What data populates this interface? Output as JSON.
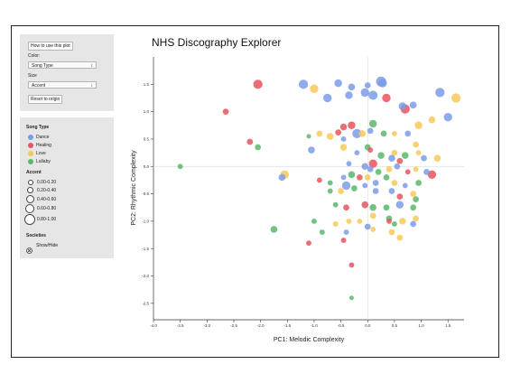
{
  "controls": {
    "help_button": "How to use this plot",
    "color_label": "Color:",
    "color_value": "Song Type",
    "size_label": "Size",
    "size_value": "Accent",
    "reset_button": "Reset to origin"
  },
  "legend": {
    "song_type_title": "Song Type",
    "song_types": [
      {
        "label": "Dance",
        "color": "#7b9ce8"
      },
      {
        "label": "Healing",
        "color": "#e8555e"
      },
      {
        "label": "Love",
        "color": "#f8c95a"
      },
      {
        "label": "Lullaby",
        "color": "#5bb86a"
      }
    ],
    "accent_title": "Accent",
    "accent_ranges": [
      "0.00-0.20",
      "0.20-0.40",
      "0.40-0.60",
      "0.60-0.80",
      "0.80-1.00"
    ],
    "societies_title": "Societies",
    "societies_toggle": "Show/Hide",
    "societies_icon": "x-circle-icon"
  },
  "chart_data": {
    "type": "scatter",
    "title": "NHS Discography Explorer",
    "xlabel": "PC1: Melodic Complexity",
    "ylabel": "PC2: Rhythmic Complexity",
    "xlim": [
      -4.0,
      1.8
    ],
    "ylim": [
      -2.8,
      2.0
    ],
    "xticks": [
      -4.0,
      -3.5,
      -3.0,
      -2.5,
      -2.0,
      -1.5,
      -1.0,
      -0.5,
      0.0,
      0.5,
      1.0,
      1.5
    ],
    "xtick_labels": [
      "-4.0",
      "-3.5",
      "-3.0",
      "-2.5",
      "-2.0",
      "-1.5",
      "-1.0",
      "-0.5",
      "0.0",
      "0.5",
      "1.0",
      "1.5"
    ],
    "yticks": [
      1.5,
      1.0,
      0.5,
      0.0,
      -0.5,
      -1.0,
      -1.5,
      -2.0,
      -2.5
    ],
    "ytick_labels": [
      "1.5",
      "1.0",
      "0.5",
      "0.0",
      "-0.5",
      "-1.0",
      "-1.5",
      "-2.0",
      "-2.5"
    ],
    "zero_lines": true,
    "colors": {
      "Dance": "#7b9ce8",
      "Healing": "#e8555e",
      "Love": "#f8c95a",
      "Lullaby": "#5bb86a"
    },
    "points": [
      {
        "x": 0.25,
        "y": 1.55,
        "type": "Dance",
        "accent": 0.9
      },
      {
        "x": 0.28,
        "y": 1.52,
        "type": "Dance",
        "accent": 0.7
      },
      {
        "x": 0.0,
        "y": 1.48,
        "type": "Dance",
        "accent": 0.4
      },
      {
        "x": -0.55,
        "y": 1.52,
        "type": "Dance",
        "accent": 0.6
      },
      {
        "x": -1.2,
        "y": 1.5,
        "type": "Dance",
        "accent": 0.8
      },
      {
        "x": -1.0,
        "y": 1.42,
        "type": "Love",
        "accent": 0.7
      },
      {
        "x": -0.3,
        "y": 1.45,
        "type": "Dance",
        "accent": 0.5
      },
      {
        "x": -0.05,
        "y": 1.35,
        "type": "Dance",
        "accent": 0.7
      },
      {
        "x": 0.1,
        "y": 1.3,
        "type": "Dance",
        "accent": 0.8
      },
      {
        "x": 0.35,
        "y": 1.25,
        "type": "Healing",
        "accent": 0.7
      },
      {
        "x": -0.35,
        "y": 1.3,
        "type": "Dance",
        "accent": 0.6
      },
      {
        "x": -0.75,
        "y": 1.25,
        "type": "Dance",
        "accent": 0.7
      },
      {
        "x": 0.65,
        "y": 1.1,
        "type": "Dance",
        "accent": 0.6
      },
      {
        "x": 0.85,
        "y": 1.12,
        "type": "Dance",
        "accent": 0.5
      },
      {
        "x": 1.35,
        "y": 1.35,
        "type": "Dance",
        "accent": 0.8
      },
      {
        "x": 1.65,
        "y": 1.25,
        "type": "Love",
        "accent": 0.8
      },
      {
        "x": 0.7,
        "y": 1.05,
        "type": "Healing",
        "accent": 0.8
      },
      {
        "x": 1.5,
        "y": 0.9,
        "type": "Dance",
        "accent": 0.7
      },
      {
        "x": 1.2,
        "y": 0.85,
        "type": "Love",
        "accent": 0.5
      },
      {
        "x": 0.95,
        "y": 0.75,
        "type": "Love",
        "accent": 0.6
      },
      {
        "x": -2.65,
        "y": 1.0,
        "type": "Healing",
        "accent": 0.4
      },
      {
        "x": -2.05,
        "y": 1.5,
        "type": "Healing",
        "accent": 0.8
      },
      {
        "x": -2.2,
        "y": 0.45,
        "type": "Healing",
        "accent": 0.4
      },
      {
        "x": -2.05,
        "y": 0.35,
        "type": "Lullaby",
        "accent": 0.4
      },
      {
        "x": -1.1,
        "y": 0.55,
        "type": "Lullaby",
        "accent": 0.2
      },
      {
        "x": -0.9,
        "y": 0.6,
        "type": "Love",
        "accent": 0.4
      },
      {
        "x": -0.45,
        "y": 0.72,
        "type": "Healing",
        "accent": 0.5
      },
      {
        "x": -0.3,
        "y": 0.75,
        "type": "Healing",
        "accent": 0.6
      },
      {
        "x": 0.1,
        "y": 0.78,
        "type": "Lullaby",
        "accent": 0.6
      },
      {
        "x": -0.1,
        "y": 0.6,
        "type": "Love",
        "accent": 0.5
      },
      {
        "x": 0.05,
        "y": 0.65,
        "type": "Dance",
        "accent": 0.4
      },
      {
        "x": -0.55,
        "y": 0.62,
        "type": "Healing",
        "accent": 0.4
      },
      {
        "x": -0.7,
        "y": 0.55,
        "type": "Love",
        "accent": 0.5
      },
      {
        "x": -0.2,
        "y": 0.6,
        "type": "Dance",
        "accent": 0.8
      },
      {
        "x": 0.3,
        "y": 0.6,
        "type": "Lullaby",
        "accent": 0.4
      },
      {
        "x": 0.5,
        "y": 0.6,
        "type": "Love",
        "accent": 0.3
      },
      {
        "x": 0.75,
        "y": 0.6,
        "type": "Dance",
        "accent": 0.4
      },
      {
        "x": 0.9,
        "y": 0.4,
        "type": "Love",
        "accent": 0.4
      },
      {
        "x": -0.45,
        "y": 0.5,
        "type": "Dance",
        "accent": 0.3
      },
      {
        "x": -1.05,
        "y": 0.3,
        "type": "Dance",
        "accent": 0.5
      },
      {
        "x": -0.45,
        "y": 0.35,
        "type": "Love",
        "accent": 0.5
      },
      {
        "x": 0.0,
        "y": 0.35,
        "type": "Lullaby",
        "accent": 0.4
      },
      {
        "x": 0.05,
        "y": 0.3,
        "type": "Healing",
        "accent": 0.3
      },
      {
        "x": -0.2,
        "y": 0.25,
        "type": "Dance",
        "accent": 0.3
      },
      {
        "x": 0.25,
        "y": 0.2,
        "type": "Lullaby",
        "accent": 0.5
      },
      {
        "x": 0.45,
        "y": 0.15,
        "type": "Dance",
        "accent": 0.5
      },
      {
        "x": 0.5,
        "y": 0.25,
        "type": "Love",
        "accent": 0.4
      },
      {
        "x": 0.7,
        "y": 0.2,
        "type": "Lullaby",
        "accent": 0.5
      },
      {
        "x": 0.95,
        "y": 0.25,
        "type": "Love",
        "accent": 0.3
      },
      {
        "x": 1.05,
        "y": 0.15,
        "type": "Dance",
        "accent": 0.4
      },
      {
        "x": 1.3,
        "y": 0.15,
        "type": "Love",
        "accent": 0.5
      },
      {
        "x": 0.6,
        "y": 0.1,
        "type": "Healing",
        "accent": 0.4
      },
      {
        "x": -3.5,
        "y": 0.0,
        "type": "Lullaby",
        "accent": 0.3
      },
      {
        "x": -1.55,
        "y": -0.15,
        "type": "Love",
        "accent": 0.7
      },
      {
        "x": -1.6,
        "y": -0.2,
        "type": "Dance",
        "accent": 0.5
      },
      {
        "x": -0.35,
        "y": 0.05,
        "type": "Dance",
        "accent": 0.3
      },
      {
        "x": -0.05,
        "y": 0.0,
        "type": "Dance",
        "accent": 0.5
      },
      {
        "x": 0.05,
        "y": -0.05,
        "type": "Dance",
        "accent": 0.4
      },
      {
        "x": 0.1,
        "y": 0.05,
        "type": "Healing",
        "accent": 0.7
      },
      {
        "x": 0.2,
        "y": -0.1,
        "type": "Lullaby",
        "accent": 0.4
      },
      {
        "x": 0.4,
        "y": -0.05,
        "type": "Love",
        "accent": 0.4
      },
      {
        "x": 0.55,
        "y": 0.0,
        "type": "Dance",
        "accent": 0.4
      },
      {
        "x": 0.75,
        "y": -0.1,
        "type": "Healing",
        "accent": 0.3
      },
      {
        "x": 0.9,
        "y": -0.05,
        "type": "Love",
        "accent": 0.3
      },
      {
        "x": 1.1,
        "y": -0.1,
        "type": "Dance",
        "accent": 0.4
      },
      {
        "x": 1.2,
        "y": -0.15,
        "type": "Healing",
        "accent": 0.7
      },
      {
        "x": -0.9,
        "y": -0.25,
        "type": "Healing",
        "accent": 0.3
      },
      {
        "x": -0.7,
        "y": -0.3,
        "type": "Lullaby",
        "accent": 0.3
      },
      {
        "x": -0.45,
        "y": -0.2,
        "type": "Dance",
        "accent": 0.3
      },
      {
        "x": -0.3,
        "y": -0.15,
        "type": "Lullaby",
        "accent": 0.5
      },
      {
        "x": -0.15,
        "y": -0.2,
        "type": "Healing",
        "accent": 0.4
      },
      {
        "x": 0.0,
        "y": -0.2,
        "type": "Love",
        "accent": 0.4
      },
      {
        "x": 0.15,
        "y": -0.3,
        "type": "Dance",
        "accent": 0.4
      },
      {
        "x": 0.35,
        "y": -0.2,
        "type": "Lullaby",
        "accent": 0.4
      },
      {
        "x": 0.5,
        "y": -0.3,
        "type": "Love",
        "accent": 0.4
      },
      {
        "x": 0.7,
        "y": -0.35,
        "type": "Dance",
        "accent": 0.3
      },
      {
        "x": 0.95,
        "y": -0.3,
        "type": "Lullaby",
        "accent": 0.4
      },
      {
        "x": -0.4,
        "y": -0.35,
        "type": "Dance",
        "accent": 0.7
      },
      {
        "x": -0.25,
        "y": -0.4,
        "type": "Lullaby",
        "accent": 0.4
      },
      {
        "x": -0.05,
        "y": -0.35,
        "type": "Dance",
        "accent": 0.3
      },
      {
        "x": -0.5,
        "y": -0.45,
        "type": "Love",
        "accent": 0.4
      },
      {
        "x": -0.7,
        "y": -0.45,
        "type": "Lullaby",
        "accent": 0.3
      },
      {
        "x": 0.15,
        "y": -0.45,
        "type": "Dance",
        "accent": 0.4
      },
      {
        "x": 0.45,
        "y": -0.45,
        "type": "Dance",
        "accent": 0.4
      },
      {
        "x": 0.6,
        "y": -0.55,
        "type": "Healing",
        "accent": 0.4
      },
      {
        "x": 0.85,
        "y": -0.5,
        "type": "Love",
        "accent": 0.4
      },
      {
        "x": 0.9,
        "y": -0.6,
        "type": "Lullaby",
        "accent": 0.4
      },
      {
        "x": -0.6,
        "y": -0.7,
        "type": "Lullaby",
        "accent": 0.3
      },
      {
        "x": -0.4,
        "y": -0.75,
        "type": "Healing",
        "accent": 0.4
      },
      {
        "x": -0.05,
        "y": -0.7,
        "type": "Healing",
        "accent": 0.5
      },
      {
        "x": 0.1,
        "y": -0.75,
        "type": "Lullaby",
        "accent": 0.5
      },
      {
        "x": 0.35,
        "y": -0.75,
        "type": "Lullaby",
        "accent": 0.4
      },
      {
        "x": 0.6,
        "y": -0.7,
        "type": "Dance",
        "accent": 0.6
      },
      {
        "x": 0.85,
        "y": -0.75,
        "type": "Lullaby",
        "accent": 0.4
      },
      {
        "x": 0.1,
        "y": -0.9,
        "type": "Love",
        "accent": 0.4
      },
      {
        "x": 0.4,
        "y": -0.95,
        "type": "Lullaby",
        "accent": 0.4
      },
      {
        "x": -0.15,
        "y": -1.0,
        "type": "Love",
        "accent": 0.3
      },
      {
        "x": -1.0,
        "y": -1.0,
        "type": "Lullaby",
        "accent": 0.3
      },
      {
        "x": -0.6,
        "y": -1.05,
        "type": "Love",
        "accent": 0.3
      },
      {
        "x": -0.35,
        "y": -1.0,
        "type": "Love",
        "accent": 0.3
      },
      {
        "x": 0.0,
        "y": -1.1,
        "type": "Dance",
        "accent": 0.4
      },
      {
        "x": 0.4,
        "y": -1.0,
        "type": "Healing",
        "accent": 0.3
      },
      {
        "x": 0.5,
        "y": -1.05,
        "type": "Lullaby",
        "accent": 0.3
      },
      {
        "x": 0.65,
        "y": -1.0,
        "type": "Love",
        "accent": 0.5
      },
      {
        "x": 0.9,
        "y": -0.95,
        "type": "Love",
        "accent": 0.4
      },
      {
        "x": 0.85,
        "y": -1.05,
        "type": "Dance",
        "accent": 0.4
      },
      {
        "x": -1.75,
        "y": -1.15,
        "type": "Lullaby",
        "accent": 0.5
      },
      {
        "x": -0.85,
        "y": -1.2,
        "type": "Lullaby",
        "accent": 0.3
      },
      {
        "x": -0.4,
        "y": -1.2,
        "type": "Dance",
        "accent": 0.3
      },
      {
        "x": 0.1,
        "y": -1.15,
        "type": "Love",
        "accent": 0.3
      },
      {
        "x": 0.45,
        "y": -1.2,
        "type": "Love",
        "accent": 0.4
      },
      {
        "x": -1.1,
        "y": -1.4,
        "type": "Healing",
        "accent": 0.3
      },
      {
        "x": -0.45,
        "y": -1.35,
        "type": "Healing",
        "accent": 0.3
      },
      {
        "x": 0.6,
        "y": -1.3,
        "type": "Love",
        "accent": 0.4
      },
      {
        "x": -0.3,
        "y": -1.8,
        "type": "Healing",
        "accent": 0.3
      },
      {
        "x": -0.3,
        "y": -2.4,
        "type": "Lullaby",
        "accent": 0.2
      }
    ]
  }
}
